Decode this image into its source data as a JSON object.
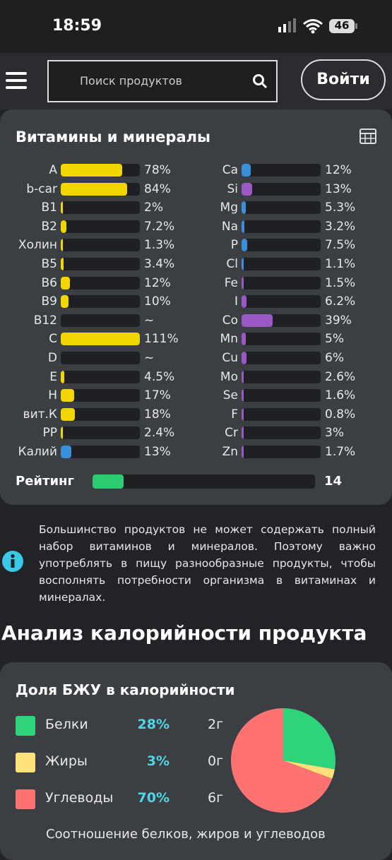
{
  "status_bar": {
    "time": "18:59",
    "battery": "46"
  },
  "header": {
    "search_placeholder": "Поиск продуктов",
    "login_button": "Войти"
  },
  "vitamins_card": {
    "title": "Витамины и минералы",
    "left": [
      {
        "name": "A",
        "value": 78,
        "value_label": "78%",
        "color": "#f2d600"
      },
      {
        "name": "b-car",
        "value": 84,
        "value_label": "84%",
        "color": "#f2d600"
      },
      {
        "name": "B1",
        "value": 2,
        "value_label": "2%",
        "color": "#f2d600"
      },
      {
        "name": "B2",
        "value": 7.2,
        "value_label": "7.2%",
        "color": "#f2d600"
      },
      {
        "name": "Холин",
        "value": 1.3,
        "value_label": "1.3%",
        "color": "#f2d600"
      },
      {
        "name": "B5",
        "value": 3.4,
        "value_label": "3.4%",
        "color": "#f2d600"
      },
      {
        "name": "B6",
        "value": 12,
        "value_label": "12%",
        "color": "#f2d600"
      },
      {
        "name": "B9",
        "value": 10,
        "value_label": "10%",
        "color": "#f2d600"
      },
      {
        "name": "B12",
        "value": null,
        "value_label": "~",
        "color": "#f2d600"
      },
      {
        "name": "C",
        "value": 111,
        "value_label": "111%",
        "color": "#f2d600"
      },
      {
        "name": "D",
        "value": null,
        "value_label": "~",
        "color": "#f2d600"
      },
      {
        "name": "E",
        "value": 4.5,
        "value_label": "4.5%",
        "color": "#f2d600"
      },
      {
        "name": "H",
        "value": 17,
        "value_label": "17%",
        "color": "#f2d600"
      },
      {
        "name": "вит.К",
        "value": 18,
        "value_label": "18%",
        "color": "#f2d600"
      },
      {
        "name": "PP",
        "value": 2.4,
        "value_label": "2.4%",
        "color": "#f2d600"
      },
      {
        "name": "Калий",
        "value": 13,
        "value_label": "13%",
        "color": "#3a8fd8"
      }
    ],
    "right": [
      {
        "name": "Ca",
        "value": 12,
        "value_label": "12%",
        "color": "#3a8fd8"
      },
      {
        "name": "Si",
        "value": 13,
        "value_label": "13%",
        "color": "#9b59c6"
      },
      {
        "name": "Mg",
        "value": 5.3,
        "value_label": "5.3%",
        "color": "#3a8fd8"
      },
      {
        "name": "Na",
        "value": 3.2,
        "value_label": "3.2%",
        "color": "#3a8fd8"
      },
      {
        "name": "P",
        "value": 7.5,
        "value_label": "7.5%",
        "color": "#3a8fd8"
      },
      {
        "name": "Cl",
        "value": 1.1,
        "value_label": "1.1%",
        "color": "#3a8fd8"
      },
      {
        "name": "Fe",
        "value": 1.5,
        "value_label": "1.5%",
        "color": "#9b59c6"
      },
      {
        "name": "I",
        "value": 6.2,
        "value_label": "6.2%",
        "color": "#9b59c6"
      },
      {
        "name": "Co",
        "value": 39,
        "value_label": "39%",
        "color": "#9b59c6"
      },
      {
        "name": "Mn",
        "value": 5,
        "value_label": "5%",
        "color": "#9b59c6"
      },
      {
        "name": "Cu",
        "value": 6,
        "value_label": "6%",
        "color": "#9b59c6"
      },
      {
        "name": "Mo",
        "value": 2.6,
        "value_label": "2.6%",
        "color": "#9b59c6"
      },
      {
        "name": "Se",
        "value": 1.6,
        "value_label": "1.6%",
        "color": "#9b59c6"
      },
      {
        "name": "F",
        "value": 0.8,
        "value_label": "0.8%",
        "color": "#9b59c6"
      },
      {
        "name": "Cr",
        "value": 3,
        "value_label": "3%",
        "color": "#9b59c6"
      },
      {
        "name": "Zn",
        "value": 1.7,
        "value_label": "1.7%",
        "color": "#9b59c6"
      }
    ],
    "rating": {
      "label": "Рейтинг",
      "value": 14,
      "color": "#2ecc71"
    }
  },
  "info_text": "Большинство продуктов не может содержать полный набор витаминов и минералов. Поэтому важно употреблять в пищу разнообразные продукты, чтобы восполнять потребности организма в витаминах и минералах.",
  "calorie_section": {
    "heading": "Анализ калорийности продукта",
    "card_title": "Доля БЖУ в калорийности",
    "items": [
      {
        "name": "Белки",
        "percent": 28,
        "percent_label": "28%",
        "grams": "2г",
        "color": "#2ed47a"
      },
      {
        "name": "Жиры",
        "percent": 3,
        "percent_label": "3%",
        "grams": "0г",
        "color": "#ffe07a"
      },
      {
        "name": "Углеводы",
        "percent": 70,
        "percent_label": "70%",
        "grams": "6г",
        "color": "#ff7272"
      }
    ],
    "footer": "Соотношение белков, жиров и углеводов"
  }
}
